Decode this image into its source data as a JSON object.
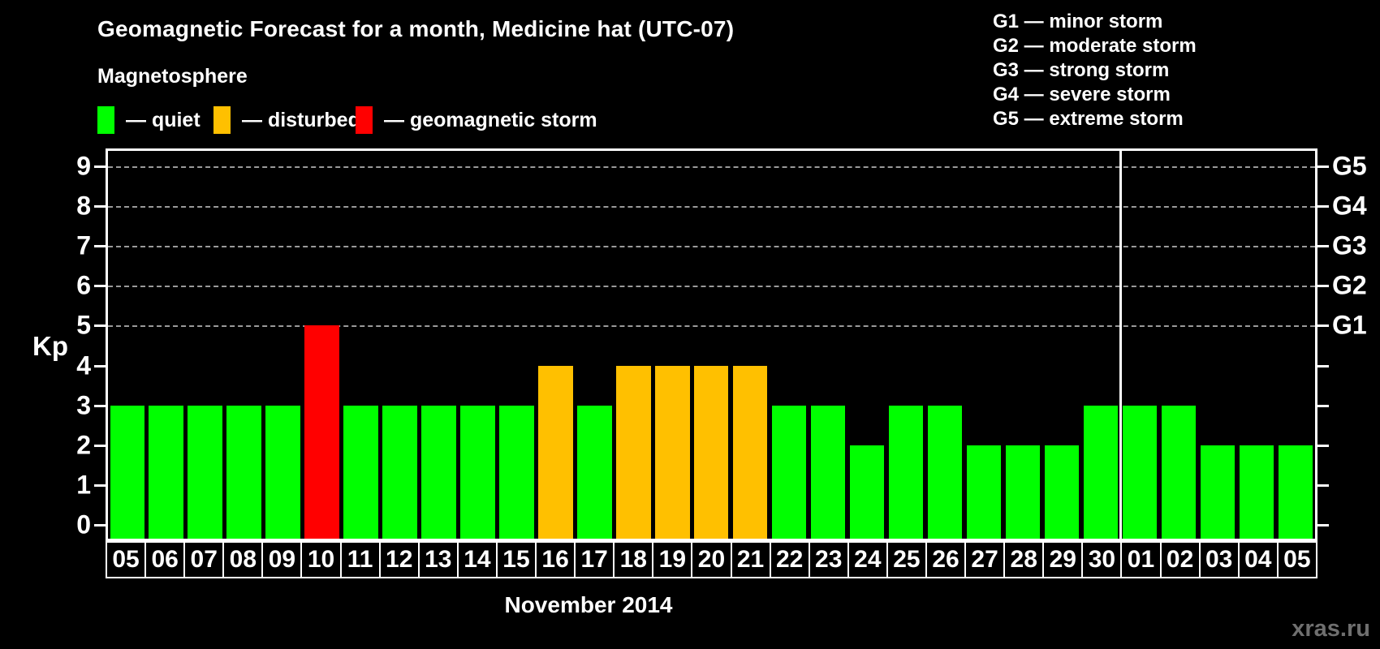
{
  "title": "Geomagnetic Forecast for a month, Medicine hat (UTC-07)",
  "subtitle": "Magnetosphere",
  "legend": {
    "items": [
      {
        "status": "quiet",
        "label": "— quiet",
        "color": "#00ff00"
      },
      {
        "status": "disturbed",
        "label": "— disturbed",
        "color": "#ffc000"
      },
      {
        "status": "storm",
        "label": "— geomagnetic storm",
        "color": "#ff0000"
      }
    ]
  },
  "g_legend": [
    "G1 — minor storm",
    "G2 — moderate storm",
    "G3 — strong storm",
    "G4 — severe storm",
    "G5 — extreme storm"
  ],
  "watermark": "xras.ru",
  "chart_data": {
    "type": "bar",
    "title": "Geomagnetic Forecast for a month, Medicine hat (UTC-07)",
    "xlabel": "November 2014",
    "ylabel": "Kp",
    "ylim": [
      0,
      9
    ],
    "yticks": [
      0,
      1,
      2,
      3,
      4,
      5,
      6,
      7,
      8,
      9
    ],
    "grid": "dashed horizontal lines at Kp 5 through 9",
    "legend_position": "top-left",
    "categories": [
      "05",
      "06",
      "07",
      "08",
      "09",
      "10",
      "11",
      "12",
      "13",
      "14",
      "15",
      "16",
      "17",
      "18",
      "19",
      "20",
      "21",
      "22",
      "23",
      "24",
      "25",
      "26",
      "27",
      "28",
      "29",
      "30",
      "01",
      "02",
      "03",
      "04",
      "05"
    ],
    "values": [
      3,
      3,
      3,
      3,
      3,
      5,
      3,
      3,
      3,
      3,
      3,
      4,
      3,
      4,
      4,
      4,
      4,
      3,
      3,
      2,
      3,
      3,
      2,
      2,
      2,
      3,
      3,
      3,
      2,
      2,
      2
    ],
    "statuses": [
      "quiet",
      "quiet",
      "quiet",
      "quiet",
      "quiet",
      "storm",
      "quiet",
      "quiet",
      "quiet",
      "quiet",
      "quiet",
      "disturbed",
      "quiet",
      "disturbed",
      "disturbed",
      "disturbed",
      "disturbed",
      "quiet",
      "quiet",
      "quiet",
      "quiet",
      "quiet",
      "quiet",
      "quiet",
      "quiet",
      "quiet",
      "quiet",
      "quiet",
      "quiet",
      "quiet",
      "quiet"
    ],
    "right_axis": [
      {
        "label": "G1",
        "kp": 5
      },
      {
        "label": "G2",
        "kp": 6
      },
      {
        "label": "G3",
        "kp": 7
      },
      {
        "label": "G4",
        "kp": 8
      },
      {
        "label": "G5",
        "kp": 9
      }
    ],
    "month_separator_after_index": 25
  }
}
